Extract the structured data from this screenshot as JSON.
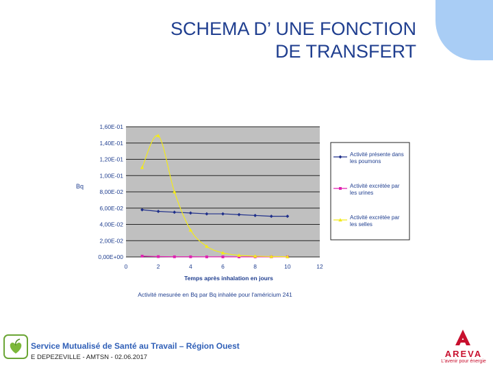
{
  "title": {
    "line1": "SCHEMA D’ UNE FONCTION",
    "line2": "DE TRANSFERT"
  },
  "chart_data": {
    "type": "line",
    "title": "",
    "xlabel": "Temps après inhalation en jours",
    "ylabel": "Bq",
    "caption": "Activité mesurée en Bq par Bq inhalée pour l'américium 241",
    "xlim": [
      0,
      12
    ],
    "ylim": [
      0,
      0.16
    ],
    "x_ticks": [
      0,
      2,
      4,
      6,
      8,
      10,
      12
    ],
    "y_ticks": [
      0,
      0.02,
      0.04,
      0.06,
      0.08,
      0.1,
      0.12,
      0.14,
      0.16
    ],
    "x_tick_labels": [
      "0",
      "2",
      "4",
      "6",
      "8",
      "10",
      "12"
    ],
    "y_tick_labels": [
      "0,00E+00",
      "2,00E-02",
      "4,00E-02",
      "6,00E-02",
      "8,00E-02",
      "1,00E-01",
      "1,20E-01",
      "1,40E-01",
      "1,60E-01"
    ],
    "grid": true,
    "legend_position": "right",
    "series": [
      {
        "name": "Activité présente dans les poumons",
        "color": "#1f2f8a",
        "marker": "diamond",
        "x": [
          1,
          2,
          3,
          4,
          5,
          6,
          7,
          8,
          9,
          10
        ],
        "y": [
          0.058,
          0.056,
          0.055,
          0.054,
          0.053,
          0.053,
          0.052,
          0.051,
          0.05,
          0.05
        ]
      },
      {
        "name": "Activité excrétée par les urines",
        "color": "#e020b0",
        "marker": "square",
        "x": [
          1,
          2,
          3,
          4,
          5,
          6,
          7,
          8,
          9,
          10
        ],
        "y": [
          0.001,
          0.0004,
          0.0002,
          0.0002,
          0.0001,
          0.0001,
          0.0001,
          0.0001,
          0.0001,
          0.0001
        ]
      },
      {
        "name": "Activité excrétée par les selles",
        "color": "#f2ea1c",
        "marker": "triangle",
        "x": [
          1,
          2,
          3,
          4,
          5,
          6,
          7,
          8,
          9,
          10
        ],
        "y": [
          0.11,
          0.149,
          0.08,
          0.033,
          0.013,
          0.005,
          0.002,
          0.001,
          0.0005,
          0.0003
        ]
      }
    ]
  },
  "footer": {
    "organization": "Service Mutualisé de Santé au Travail – Région Ouest",
    "author": "E DEPEZEVILLE - AMTSN - 02.06.2017",
    "brand_name": "AREVA",
    "brand_tagline": "L'avenir pour énergie",
    "brand_color": "#c8102e"
  }
}
